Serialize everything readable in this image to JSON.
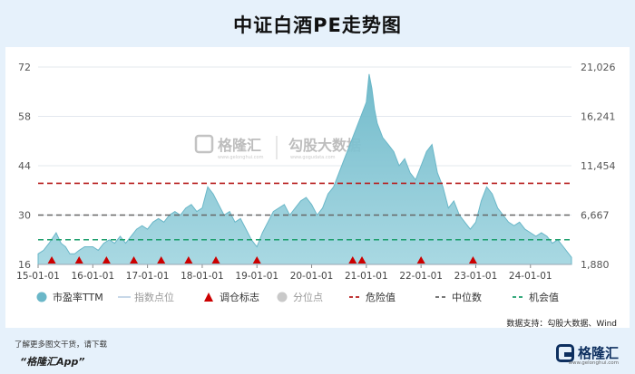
{
  "page": {
    "title": "中证白酒PE走势图",
    "source": "数据支持：勾股大数据、Wind",
    "footer_note": "了解更多图文干货，请下载",
    "footer_app": "“格隆汇App”",
    "logo_text": "格隆汇",
    "logo_sub": "www.gelonghui.com",
    "watermark_left": "格隆汇",
    "watermark_left_sub": "www.gelonghui.com",
    "watermark_right": "勾股大数据",
    "watermark_right_sub": "www.gogudata.com"
  },
  "chart_data": {
    "type": "area",
    "title": "中证白酒PE走势图",
    "x_ticks": [
      "15-01-01",
      "16-01-01",
      "17-01-01",
      "18-01-01",
      "19-01-01",
      "20-01-01",
      "21-01-01",
      "22-01-01",
      "23-01-01",
      "24-01-01"
    ],
    "x_range": [
      2015.0,
      2024.75
    ],
    "y_left_ticks": [
      "72",
      "58",
      "44",
      "30",
      "16"
    ],
    "y_left_range": [
      16,
      72
    ],
    "y_right_ticks": [
      "21,026",
      "16,241",
      "11,454",
      "6,667",
      "1,880"
    ],
    "y_right_range": [
      1880,
      21026
    ],
    "grid": true,
    "series": [
      {
        "name": "市盈率TTM",
        "color": "#6ab7c8",
        "x": [
          2015.0,
          2015.1,
          2015.2,
          2015.33,
          2015.42,
          2015.5,
          2015.58,
          2015.67,
          2015.75,
          2015.85,
          2016.0,
          2016.1,
          2016.2,
          2016.3,
          2016.4,
          2016.5,
          2016.6,
          2016.7,
          2016.8,
          2016.9,
          2017.0,
          2017.1,
          2017.2,
          2017.3,
          2017.4,
          2017.5,
          2017.6,
          2017.7,
          2017.8,
          2017.9,
          2018.0,
          2018.1,
          2018.2,
          2018.3,
          2018.4,
          2018.5,
          2018.6,
          2018.7,
          2018.8,
          2018.9,
          2019.0,
          2019.1,
          2019.2,
          2019.3,
          2019.4,
          2019.5,
          2019.6,
          2019.7,
          2019.8,
          2019.9,
          2020.0,
          2020.1,
          2020.2,
          2020.3,
          2020.4,
          2020.5,
          2020.6,
          2020.7,
          2020.8,
          2020.9,
          2021.0,
          2021.05,
          2021.1,
          2021.15,
          2021.2,
          2021.3,
          2021.4,
          2021.5,
          2021.6,
          2021.7,
          2021.8,
          2021.9,
          2022.0,
          2022.1,
          2022.2,
          2022.3,
          2022.4,
          2022.5,
          2022.6,
          2022.7,
          2022.8,
          2022.9,
          2023.0,
          2023.1,
          2023.2,
          2023.3,
          2023.4,
          2023.5,
          2023.6,
          2023.7,
          2023.8,
          2023.9,
          2024.0,
          2024.1,
          2024.2,
          2024.3,
          2024.4,
          2024.5,
          2024.6,
          2024.7,
          2024.75
        ],
        "values": [
          19,
          20,
          22,
          25,
          22,
          21,
          19,
          19,
          20,
          21,
          21,
          20,
          22,
          23,
          22,
          24,
          22,
          24,
          26,
          27,
          26,
          28,
          29,
          28,
          30,
          31,
          30,
          32,
          33,
          31,
          32,
          38,
          36,
          33,
          30,
          31,
          28,
          29,
          26,
          23,
          21,
          25,
          28,
          31,
          32,
          33,
          30,
          32,
          34,
          35,
          33,
          30,
          32,
          36,
          38,
          42,
          46,
          50,
          54,
          58,
          62,
          70,
          66,
          60,
          56,
          52,
          50,
          48,
          44,
          46,
          42,
          40,
          44,
          48,
          50,
          42,
          38,
          32,
          34,
          30,
          28,
          26,
          28,
          34,
          38,
          36,
          32,
          30,
          28,
          27,
          28,
          26,
          25,
          24,
          25,
          24,
          22,
          23,
          21,
          19,
          18
        ]
      }
    ],
    "lines": [
      {
        "name": "危险值",
        "y": 39,
        "color": "#b71c1c"
      },
      {
        "name": "中位数",
        "y": 30,
        "color": "#666666"
      },
      {
        "name": "机会值",
        "y": 23,
        "color": "#1b9e6b"
      }
    ],
    "markers": {
      "name": "调仓标志",
      "color": "#cc0000",
      "x": [
        2015.25,
        2015.75,
        2016.25,
        2016.75,
        2017.25,
        2017.75,
        2018.25,
        2019.0,
        2020.75,
        2020.92,
        2022.0,
        2022.95
      ]
    },
    "legend": [
      {
        "label": "市盈率TTM",
        "shape": "dot",
        "color": "#6ab7c8",
        "muted": false
      },
      {
        "label": "指数点位",
        "shape": "line",
        "color": "#c8d8e8",
        "muted": true
      },
      {
        "label": "调仓标志",
        "shape": "triangle",
        "color": "#cc0000",
        "muted": false
      },
      {
        "label": "分位点",
        "shape": "dot",
        "color": "#c9c9c9",
        "muted": true
      },
      {
        "label": "危险值",
        "shape": "dash",
        "color": "#b71c1c",
        "muted": false
      },
      {
        "label": "中位数",
        "shape": "dash",
        "color": "#666666",
        "muted": false
      },
      {
        "label": "机会值",
        "shape": "dash",
        "color": "#1b9e6b",
        "muted": false
      }
    ],
    "legend_position": "bottom"
  }
}
